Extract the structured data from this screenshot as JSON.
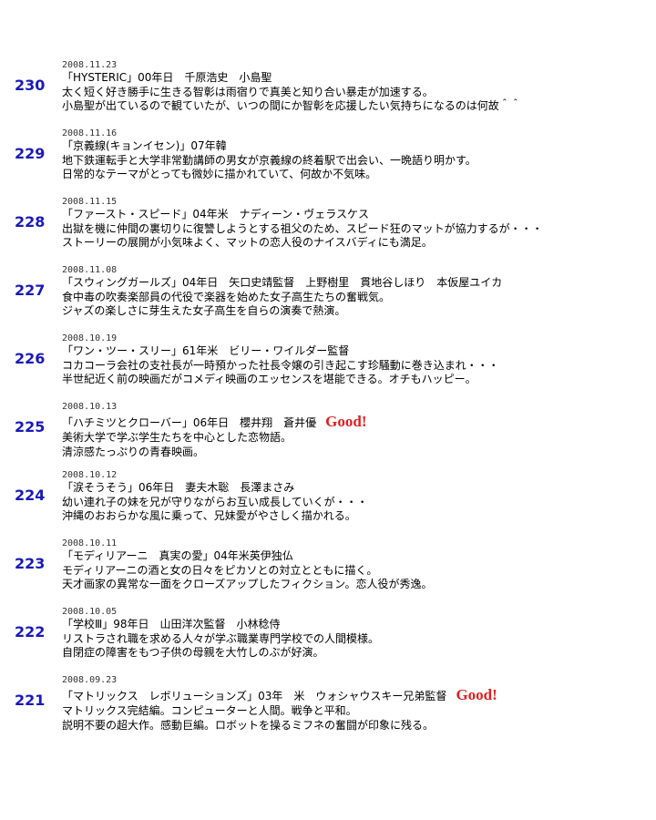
{
  "entries": [
    {
      "number": "230",
      "date": "2008.11.23",
      "title": "「HYSTERIC」00年日　千原浩史　小島聖",
      "lines": [
        "太く短く好き勝手に生きる智彰は雨宿りで真美と知り合い暴走が加速する。",
        "小島聖が出ているので観ていたが、いつの間にか智彰を応援したい気持ちになるのは何故＾＾"
      ]
    },
    {
      "number": "229",
      "date": "2008.11.16",
      "title": "「京義線(キョンイセン)」07年韓",
      "lines": [
        "地下鉄運転手と大学非常勤講師の男女が京義線の終着駅で出会い、一晩語り明かす。",
        "日常的なテーマがとっても微妙に描かれていて、何故か不気味。"
      ]
    },
    {
      "number": "228",
      "date": "2008.11.15",
      "title": "「ファースト・スピード」04年米　ナディーン・ヴェラスケス",
      "lines": [
        "出獄を機に仲間の裏切りに復讐しようとする祖父のため、スピード狂のマットが協力するが・・・",
        "ストーリーの展開が小気味よく、マットの恋人役のナイスバディにも満足。"
      ]
    },
    {
      "number": "227",
      "date": "2008.11.08",
      "title": "「スウィングガールズ」04年日　矢口史靖監督　上野樹里　貫地谷しほり　本仮屋ユイカ",
      "lines": [
        "食中毒の吹奏楽部員の代役で楽器を始めた女子高生たちの奮戦気。",
        "ジャズの楽しさに芽生えた女子高生を自らの演奏で熱演。"
      ]
    },
    {
      "number": "226",
      "date": "2008.10.19",
      "title": "「ワン・ツー・スリー」61年米　ビリー・ワイルダー監督",
      "lines": [
        "コカコーラ会社の支社長が一時預かった社長令嬢の引き起こす珍騒動に巻き込まれ・・・",
        "半世紀近く前の映画だがコメディ映画のエッセンスを堪能できる。オチもハッピー。"
      ]
    },
    {
      "number": "225",
      "date": "2008.10.13",
      "title": "「ハチミツとクローバー」06年日　櫻井翔　蒼井優",
      "badge": "Good!",
      "lines": [
        "美術大学で学ぶ学生たちを中心とした恋物語。",
        "清涼感たっぷりの青春映画。"
      ]
    },
    {
      "number": "224",
      "date": "2008.10.12",
      "title": "「涙そうそう」06年日　妻夫木聡　長澤まさみ",
      "lines": [
        "幼い連れ子の妹を兄が守りながらお互い成長していくが・・・",
        "沖縄のおおらかな風に乗って、兄妹愛がやさしく描かれる。"
      ]
    },
    {
      "number": "223",
      "date": "2008.10.11",
      "title": "「モディリアーニ　真実の愛」04年米英伊独仏",
      "lines": [
        "モディリアーニの酒と女の日々をピカソとの対立とともに描く。",
        "天才画家の異常な一面をクローズアップしたフィクション。恋人役が秀逸。"
      ]
    },
    {
      "number": "222",
      "date": "2008.10.05",
      "title": "「学校Ⅲ」98年日　山田洋次監督　小林稔侍",
      "lines": [
        "リストラされ職を求める人々が学ぶ職業専門学校での人間模様。",
        "自閉症の障害をもつ子供の母親を大竹しのぶが好演。"
      ]
    },
    {
      "number": "221",
      "date": "2008.09.23",
      "title": "「マトリックス　レボリューションズ」03年　米　ウォシャウスキー兄弟監督",
      "badge": "Good!",
      "lines": [
        "マトリックス完結編。コンピューターと人間。戦争と平和。",
        "説明不要の超大作。感動巨編。ロボットを操るミフネの奮闘が印象に残る。"
      ]
    }
  ]
}
